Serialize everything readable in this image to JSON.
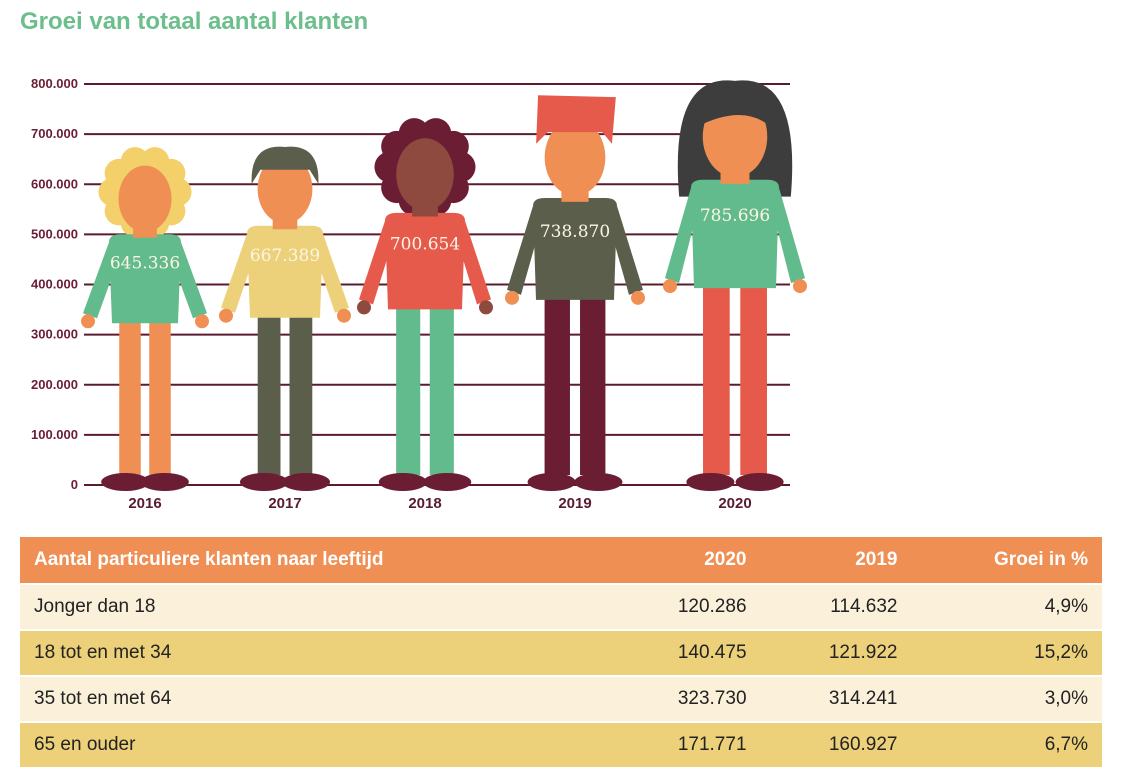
{
  "title": "Groei van totaal aantal klanten",
  "chart_data": {
    "type": "bar",
    "title": "Groei van totaal aantal klanten",
    "categories": [
      "2016",
      "2017",
      "2018",
      "2019",
      "2020"
    ],
    "values": [
      645336,
      667389,
      700654,
      738870,
      785696
    ],
    "value_labels": [
      "645.336",
      "667.389",
      "700.654",
      "738.870",
      "785.696"
    ],
    "ylim": [
      0,
      800000
    ],
    "yticks": [
      0,
      100000,
      200000,
      300000,
      400000,
      500000,
      600000,
      700000,
      800000
    ],
    "ytick_labels": [
      "0",
      "100.000",
      "200.000",
      "300.000",
      "400.000",
      "500.000",
      "600.000",
      "700.000",
      "800.000"
    ],
    "xlabel": "",
    "ylabel": "",
    "grid": true
  },
  "colors": {
    "grid": "#5b1b2e",
    "title": "#6cbf8c",
    "skin": "#ef8f54",
    "people": [
      {
        "hair": "#f3d06a",
        "shirt": "#62bb8c",
        "pants": "#ef8f54",
        "skin": "#ef8f54"
      },
      {
        "hair": "#5a5e4b",
        "shirt": "#ecd17a",
        "pants": "#5a5e4b",
        "skin": "#ef8f54"
      },
      {
        "hair": "#6b1d34",
        "shirt": "#e65a4c",
        "pants": "#62bb8c",
        "skin": "#8e4a3e"
      },
      {
        "hair": "#e65a4c",
        "shirt": "#5a5e4b",
        "pants": "#6b1d34",
        "skin": "#ef8f54"
      },
      {
        "hair": "#3d3d3d",
        "shirt": "#62bb8c",
        "pants": "#e65a4c",
        "skin": "#ef8f54"
      }
    ]
  },
  "table": {
    "headers": [
      "Aantal particuliere klanten naar leeftijd",
      "2020",
      "2019",
      "Groei in %"
    ],
    "rows": [
      [
        "Jonger dan 18",
        "120.286",
        "114.632",
        "4,9%"
      ],
      [
        "18 tot en met 34",
        "140.475",
        "121.922",
        "15,2%"
      ],
      [
        "35 tot en met 64",
        "323.730",
        "314.241",
        "3,0%"
      ],
      [
        "65 en ouder",
        "171.771",
        "160.927",
        "6,7%"
      ]
    ]
  }
}
